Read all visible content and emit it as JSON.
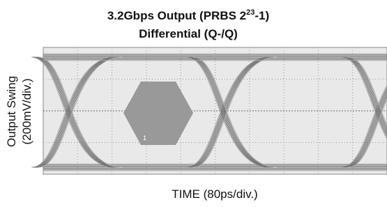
{
  "chart_data": {
    "type": "eye-diagram",
    "title": {
      "main": "3.2Gbps Output (PRBS 2",
      "superscript": "23",
      "tail": "-1)"
    },
    "subtitle": "Differential (Q-/Q)",
    "ylabel": [
      "Output Swing",
      "(200mV/div.)"
    ],
    "xlabel": "TIME (80ps/div.)",
    "mask_label": "1"
  }
}
